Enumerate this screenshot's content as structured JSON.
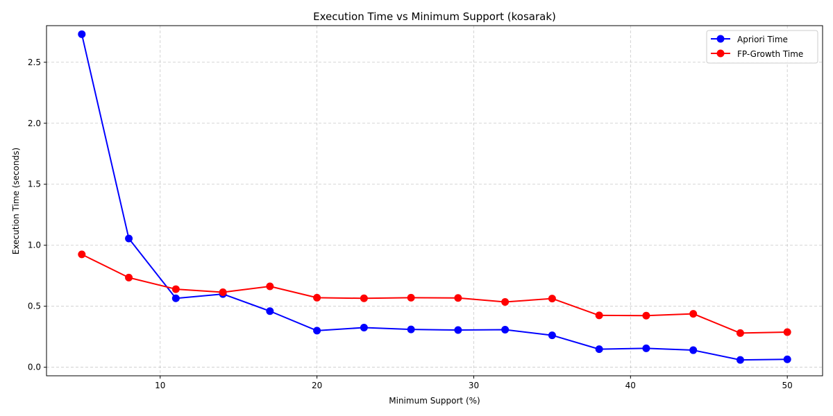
{
  "chart_data": {
    "type": "line",
    "title": "Execution Time vs Minimum Support (kosarak)",
    "xlabel": "Minimum Support (%)",
    "ylabel": "Execution Time (seconds)",
    "xlim": [
      2.75,
      52.25
    ],
    "ylim": [
      -0.07,
      2.8
    ],
    "xticks": [
      10,
      20,
      30,
      40,
      50
    ],
    "yticks": [
      0.0,
      0.5,
      1.0,
      1.5,
      2.0,
      2.5
    ],
    "xtick_labels": [
      "10",
      "20",
      "30",
      "40",
      "50"
    ],
    "ytick_labels": [
      "0.0",
      "0.5",
      "1.0",
      "1.5",
      "2.0",
      "2.5"
    ],
    "grid": true,
    "legend_position": "top-right",
    "x": [
      5,
      8,
      11,
      14,
      17,
      20,
      23,
      26,
      29,
      32,
      35,
      38,
      41,
      44,
      47,
      50
    ],
    "series": [
      {
        "name": "Apriori Time",
        "color": "#0000ff",
        "marker": "circle",
        "values": [
          2.73,
          1.055,
          0.565,
          0.6,
          0.46,
          0.3,
          0.325,
          0.31,
          0.305,
          0.308,
          0.262,
          0.148,
          0.155,
          0.14,
          0.06,
          0.065
        ]
      },
      {
        "name": "FP-Growth Time",
        "color": "#ff0000",
        "marker": "circle",
        "values": [
          0.925,
          0.735,
          0.64,
          0.615,
          0.663,
          0.57,
          0.565,
          0.57,
          0.568,
          0.535,
          0.563,
          0.425,
          0.423,
          0.438,
          0.28,
          0.288
        ]
      }
    ]
  }
}
